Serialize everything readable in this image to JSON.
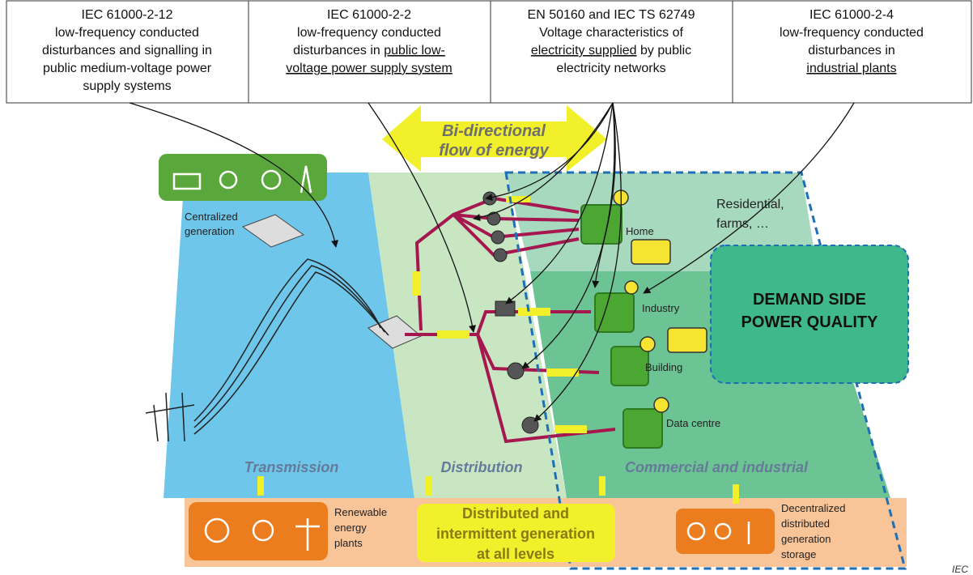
{
  "standards": [
    {
      "code": "IEC 61000-2-12",
      "lines": [
        [
          {
            "text": "low-frequency conducted",
            "underline": false
          }
        ],
        [
          {
            "text": "disturbances and signalling in",
            "underline": false
          }
        ],
        [
          {
            "text": "public medium-voltage power",
            "underline": false
          }
        ],
        [
          {
            "text": "supply systems",
            "underline": false
          }
        ]
      ]
    },
    {
      "code": "IEC 61000-2-2",
      "lines": [
        [
          {
            "text": "low-frequency conducted",
            "underline": false
          }
        ],
        [
          {
            "text": "disturbances in ",
            "underline": false
          },
          {
            "text": "public low-",
            "underline": true
          }
        ],
        [
          {
            "text": "voltage power supply system",
            "underline": true
          }
        ]
      ]
    },
    {
      "code": "EN 50160 and IEC TS 62749",
      "lines": [
        [
          {
            "text": "Voltage characteristics of",
            "underline": false
          }
        ],
        [
          {
            "text": "electricity supplied",
            "underline": true
          },
          {
            "text": " by public",
            "underline": false
          }
        ],
        [
          {
            "text": "electricity networks",
            "underline": false
          }
        ]
      ]
    },
    {
      "code": "IEC 61000-2-4",
      "lines": [
        [
          {
            "text": "low-frequency conducted",
            "underline": false
          }
        ],
        [
          {
            "text": "disturbances in",
            "underline": false
          }
        ],
        [
          {
            "text": "industrial plants",
            "underline": true
          }
        ]
      ]
    }
  ],
  "labels": {
    "bidirectional": [
      "Bi-directional",
      "flow of energy"
    ],
    "centralized": [
      "Centralized",
      "generation"
    ],
    "home": [
      "Home"
    ],
    "industry": [
      "Industry"
    ],
    "building": [
      "Building"
    ],
    "datacentre": [
      "Data centre"
    ],
    "residential": [
      "Residential,",
      "farms, …"
    ],
    "demand": [
      "DEMAND SIDE",
      "POWER QUALITY"
    ],
    "transmission": [
      "Transmission"
    ],
    "distribution": [
      "Distribution"
    ],
    "commercial": [
      "Commercial and industrial"
    ],
    "renewable": [
      "Renewable",
      "energy",
      "plants"
    ],
    "distributed": [
      "Distributed and",
      "intermittent generation",
      "at all levels"
    ],
    "decentralized": [
      "Decentralized",
      "distributed",
      "generation",
      "storage"
    ],
    "credit": [
      "IEC"
    ]
  }
}
